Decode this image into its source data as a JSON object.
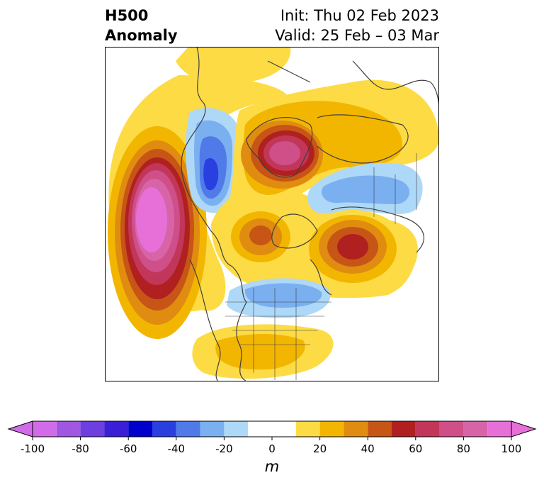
{
  "title": {
    "left_line1": "H500",
    "left_line2": "Anomaly",
    "init": "Init: Thu 02 Feb 2023",
    "valid": "Valid: 25 Feb – 03 Mar"
  },
  "colorbar": {
    "unit": "m",
    "ticks": [
      "-100",
      "-80",
      "-60",
      "-40",
      "-20",
      "0",
      "20",
      "40",
      "60",
      "80",
      "100"
    ],
    "levels": [
      -100,
      -90,
      -80,
      -70,
      -60,
      -50,
      -40,
      -30,
      -20,
      -10,
      10,
      20,
      30,
      40,
      50,
      60,
      70,
      80,
      90,
      100
    ],
    "colors": [
      "#d16be8",
      "#9f57e3",
      "#6d3ee0",
      "#3a1fd6",
      "#0000cc",
      "#2a3fdf",
      "#4f7ae8",
      "#7aaff0",
      "#aed8f8",
      "#ffffff",
      "#fddb45",
      "#f2b600",
      "#e08c10",
      "#c65516",
      "#b02020",
      "#c2365a",
      "#cf4f88",
      "#d864a8",
      "#e670d8"
    ],
    "under_color": "#d16be8",
    "over_color": "#e670d8"
  },
  "map": {
    "colors": {
      "coast": "#3f3f3f",
      "pos1": "#fddb45",
      "pos2": "#f2b600",
      "pos3": "#e08c10",
      "pos4": "#c65516",
      "pos5": "#b02020",
      "pos6": "#c2365a",
      "pos7": "#cf4f88",
      "pos8": "#d864a8",
      "pos9": "#e670d8",
      "neg1": "#aed8f8",
      "neg2": "#7aaff0",
      "neg3": "#4f7ae8",
      "neg4": "#2a3fdf"
    }
  }
}
